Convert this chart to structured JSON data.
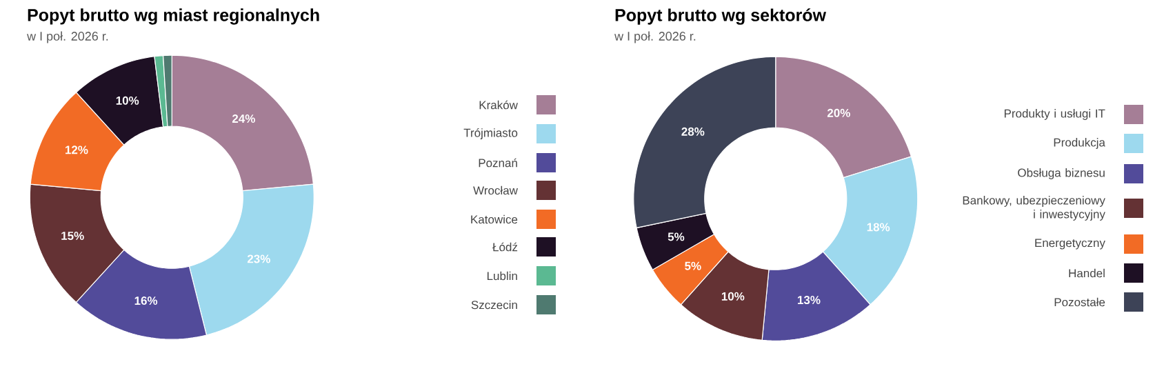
{
  "chart_data": [
    {
      "type": "donut",
      "title": "Popyt brutto wg miast regionalnych",
      "subtitle": "w I poł. 2026 r.",
      "legend": "right",
      "categories": [
        "Kraków",
        "Trójmiasto",
        "Poznań",
        "Wrocław",
        "Katowice",
        "Łódź",
        "Lublin",
        "Szczecin"
      ],
      "values": [
        24,
        23,
        16,
        15,
        12,
        10,
        1,
        1
      ],
      "value_labels": [
        "24%",
        "23%",
        "16%",
        "15%",
        "12%",
        "10%",
        null,
        null
      ],
      "colors": [
        "#a57e96",
        "#9dd9ee",
        "#524b9a",
        "#643234",
        "#f26b25",
        "#1e1024",
        "#5bb992",
        "#4f7a70"
      ]
    },
    {
      "type": "donut",
      "title": "Popyt brutto wg sektorów",
      "subtitle": "w I poł. 2026 r.",
      "legend": "right",
      "categories": [
        "Produkty i usługi IT",
        "Produkcja",
        "Obsługa biznesu",
        "Bankowy, ubezpieczeniowy i inwestycyjny",
        "Energetyczny",
        "Handel",
        "Pozostałe"
      ],
      "values": [
        20,
        18,
        13,
        10,
        5,
        5,
        28
      ],
      "value_labels": [
        "20%",
        "18%",
        "13%",
        "10%",
        "5%",
        "5%",
        "28%"
      ],
      "colors": [
        "#a57e96",
        "#9dd9ee",
        "#524b9a",
        "#643234",
        "#f26b25",
        "#1e1024",
        "#3d4357"
      ]
    }
  ]
}
